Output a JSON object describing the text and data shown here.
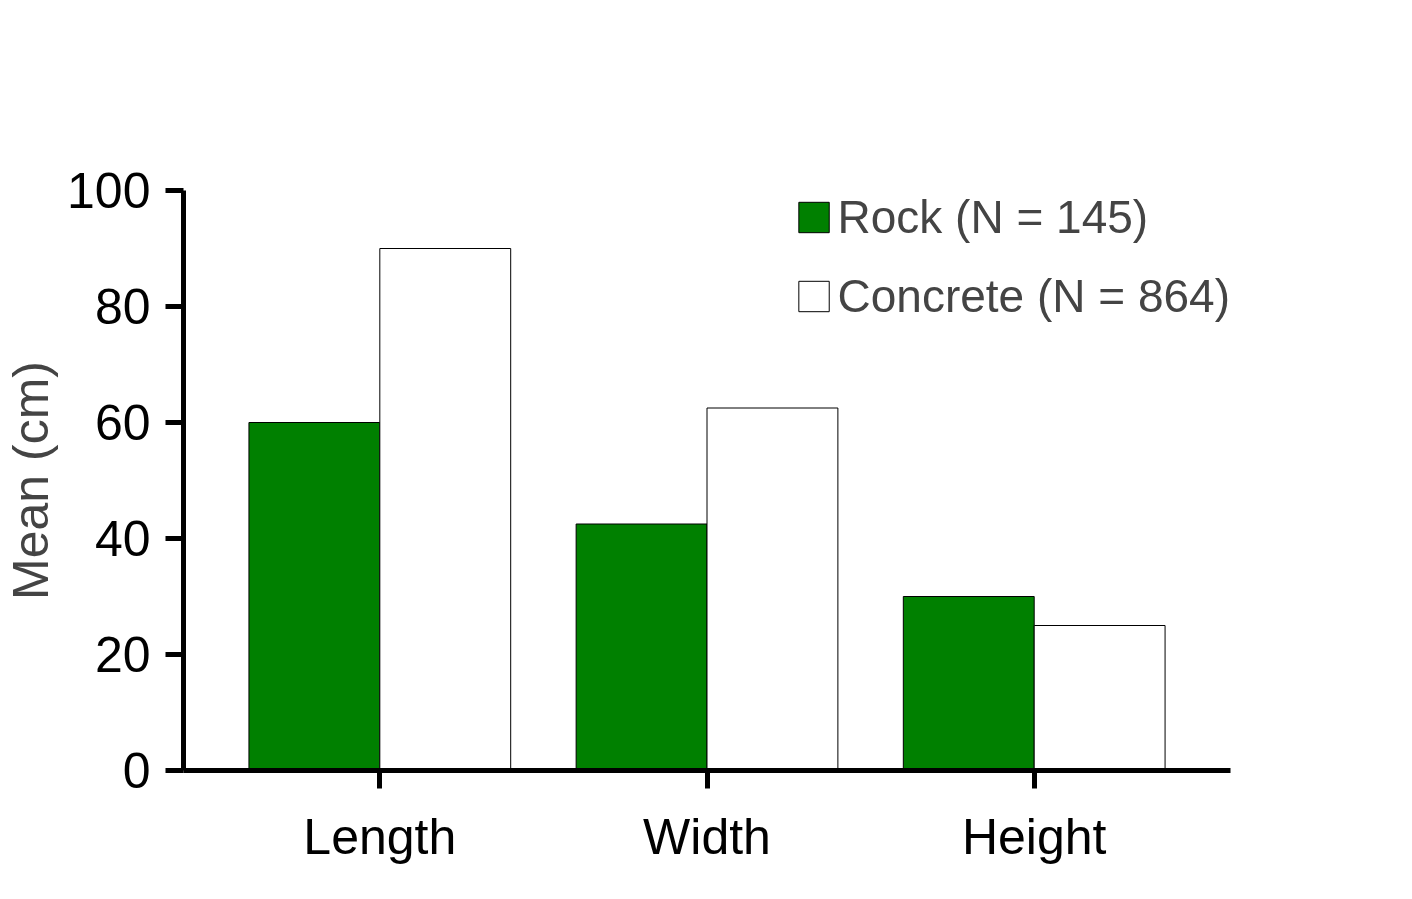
{
  "chart_data": {
    "type": "bar",
    "ylabel": "Mean (cm)",
    "categories": [
      "Length",
      "Width",
      "Height"
    ],
    "series": [
      {
        "name": "Rock (N = 145)",
        "color": "#008000",
        "values": [
          60,
          42.5,
          30
        ]
      },
      {
        "name": "Concrete (N = 864)",
        "color": "#ffffff",
        "values": [
          90,
          62.5,
          25
        ]
      }
    ],
    "ylim": [
      0,
      100
    ],
    "yticks": [
      0,
      20,
      40,
      60,
      80,
      100
    ],
    "grid": false,
    "legend": "top right"
  }
}
